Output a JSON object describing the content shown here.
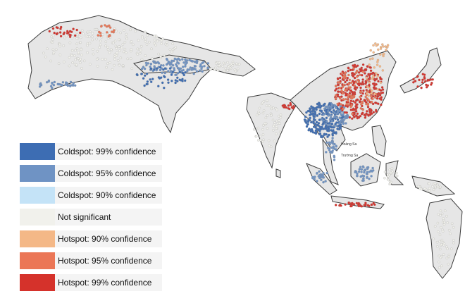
{
  "map": {
    "labels": [
      "Hoàng Sa",
      "Trường Sa"
    ],
    "legend": [
      {
        "label": "Coldspot: 99% confidence",
        "color": "#3d6db3"
      },
      {
        "label": "Coldspot: 95% confidence",
        "color": "#6f93c4"
      },
      {
        "label": "Coldspot: 90% confidence",
        "color": "#c4e3f7"
      },
      {
        "label": "Not significant",
        "color": "#f1f1ec"
      },
      {
        "label": "Hotspot: 90% confidence",
        "color": "#f4b887"
      },
      {
        "label": "Hotspot: 95% confidence",
        "color": "#eb7656"
      },
      {
        "label": "Hotspot: 99% confidence",
        "color": "#d5322b"
      }
    ]
  }
}
